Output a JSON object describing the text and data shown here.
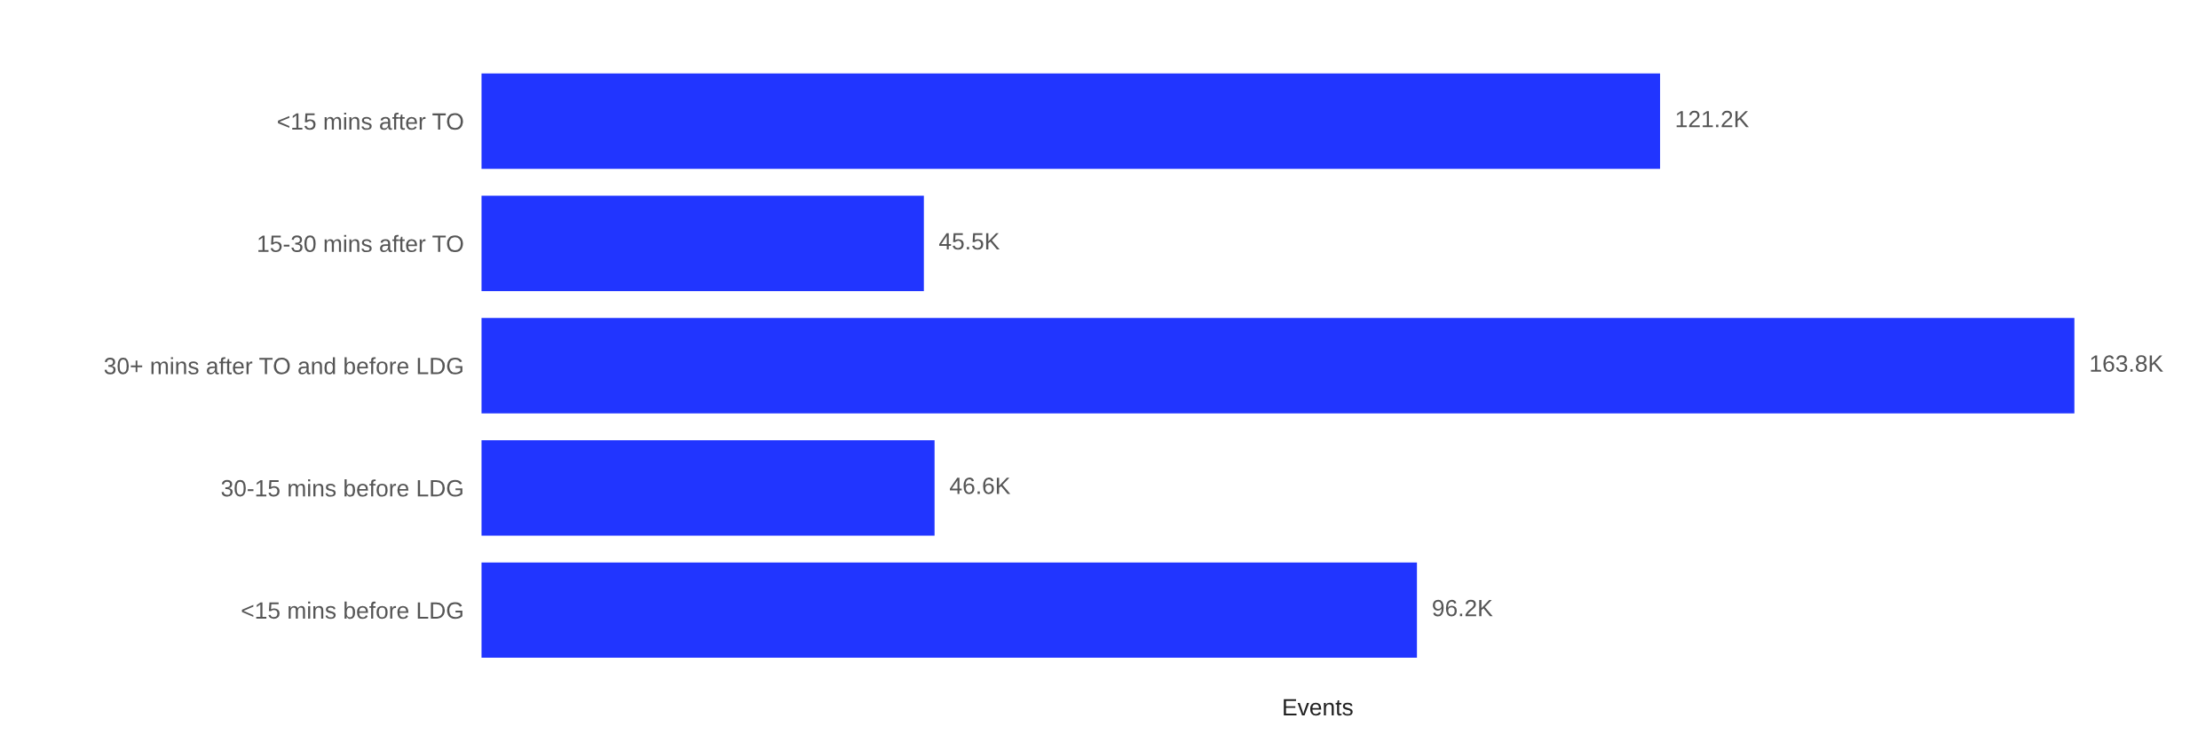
{
  "chart_data": {
    "type": "bar",
    "orientation": "horizontal",
    "xlabel": "Events",
    "categories": [
      "<15 mins after TO",
      "15-30 mins after TO",
      "30+ mins after TO and before LDG",
      "30-15 mins before LDG",
      "<15 mins before LDG"
    ],
    "values": [
      121200,
      45500,
      163800,
      46600,
      96200
    ],
    "value_labels": [
      "121.2K",
      "45.5K",
      "163.8K",
      "46.6K",
      "96.2K"
    ],
    "color": "#2135ff",
    "grid": false,
    "legend": false
  }
}
